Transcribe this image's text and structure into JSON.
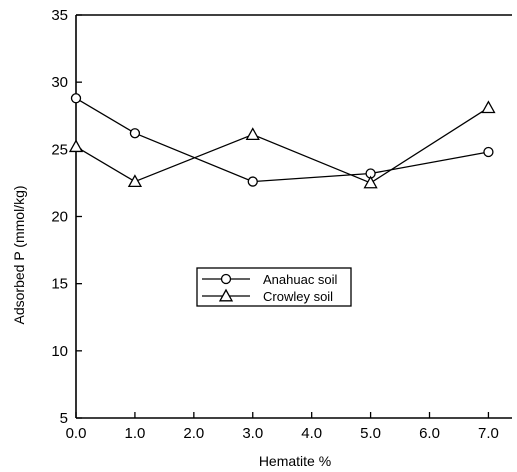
{
  "chart_data": {
    "type": "line",
    "title": "",
    "xlabel": "Hematite %",
    "ylabel": "Adsorbed P  (mmol/kg)",
    "xlim": [
      0,
      7.4
    ],
    "ylim": [
      5,
      35
    ],
    "x_ticks": [
      0,
      1,
      2,
      3,
      4,
      5,
      6,
      7
    ],
    "x_tick_labels": [
      "0.0",
      "1.0",
      "2.0",
      "3.0",
      "4.0",
      "5.0",
      "6.0",
      "7.0"
    ],
    "y_ticks": [
      5,
      10,
      15,
      20,
      25,
      30,
      35
    ],
    "y_tick_labels": [
      "5",
      "10",
      "15",
      "20",
      "25",
      "30",
      "35"
    ],
    "grid": false,
    "legend_position": "center-right",
    "series": [
      {
        "name": "Anahuac soil",
        "marker": "circle",
        "x": [
          0,
          1,
          3,
          5,
          7
        ],
        "y": [
          28.8,
          26.2,
          22.6,
          23.2,
          24.8
        ]
      },
      {
        "name": "Crowley soil",
        "marker": "triangle",
        "x": [
          0,
          1,
          3,
          5,
          7
        ],
        "y": [
          25.2,
          22.6,
          26.1,
          22.5,
          28.1
        ]
      }
    ],
    "colors": {
      "line": "#000000",
      "background": "#ffffff"
    }
  }
}
